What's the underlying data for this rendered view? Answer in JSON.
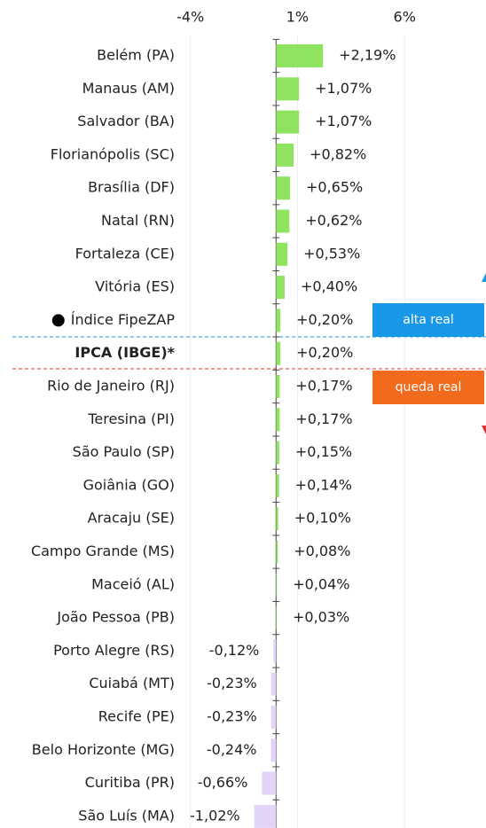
{
  "chart_data": {
    "type": "hbar",
    "categories": [
      "Belém (PA)",
      "Manaus (AM)",
      "Salvador (BA)",
      "Florianópolis (SC)",
      "Brasília (DF)",
      "Natal (RN)",
      "Fortaleza (CE)",
      "Vitória (ES)",
      "Índice FipeZAP",
      "IPCA (IBGE)*",
      "Rio de Janeiro (RJ)",
      "Teresina (PI)",
      "São Paulo (SP)",
      "Goiânia (GO)",
      "Aracaju (SE)",
      "Campo Grande (MS)",
      "Maceió (AL)",
      "João Pessoa (PB)",
      "Porto Alegre (RS)",
      "Cuiabá (MT)",
      "Recife (PE)",
      "Belo Horizonte (MG)",
      "Curitiba (PR)",
      "São Luís (MA)"
    ],
    "values": [
      2.19,
      1.07,
      1.07,
      0.82,
      0.65,
      0.62,
      0.53,
      0.4,
      0.2,
      0.2,
      0.17,
      0.17,
      0.15,
      0.14,
      0.1,
      0.08,
      0.04,
      0.03,
      -0.12,
      -0.23,
      -0.23,
      -0.24,
      -0.66,
      -1.02
    ],
    "value_labels": [
      "+2,19%",
      "+1,07%",
      "+1,07%",
      "+0,82%",
      "+0,65%",
      "+0,62%",
      "+0,53%",
      "+0,40%",
      "+0,20%",
      "+0,20%",
      "+0,17%",
      "+0,17%",
      "+0,15%",
      "+0,14%",
      "+0,10%",
      "+0,08%",
      "+0,04%",
      "+0,03%",
      "-0,12%",
      "-0,23%",
      "-0,23%",
      "-0,24%",
      "-0,66%",
      "-1,02%"
    ],
    "positive_color": "#8ee35f",
    "negative_color": "#e3d4f7",
    "xlim": [
      -4.4,
      9.8
    ],
    "xticks": [
      {
        "value": -4,
        "label": "-4%"
      },
      {
        "value": 1,
        "label": "1%"
      },
      {
        "value": 6,
        "label": "6%"
      }
    ],
    "grid": true,
    "bold_categories": [
      "IPCA (IBGE)*"
    ],
    "dot_categories": [
      "Índice FipeZAP"
    ],
    "annotations": [
      {
        "text": "alta real",
        "color": "#1a98e8"
      },
      {
        "text": "queda real",
        "color": "#f26a1b"
      }
    ]
  }
}
